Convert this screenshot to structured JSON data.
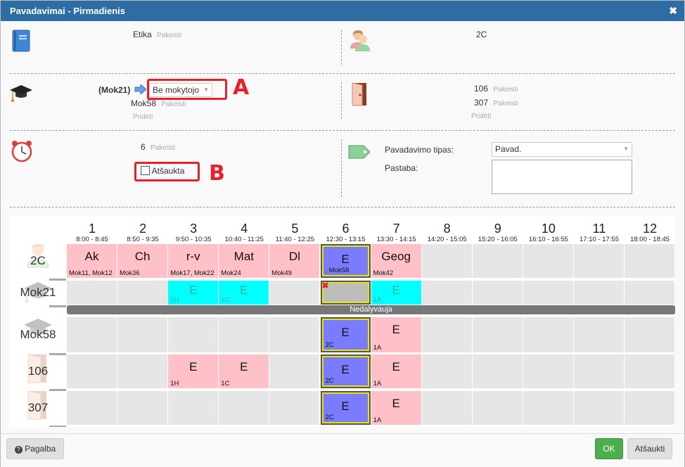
{
  "dialog": {
    "title": "Pavadavimai - Pirmadienis",
    "close_glyph": "✖"
  },
  "subject": {
    "name": "Etika",
    "change": "Pakeisti",
    "icon": "book-icon"
  },
  "klass": {
    "name": "2C",
    "icon": "users-icon"
  },
  "teacher": {
    "original": "(Mok21)",
    "select_value": "Be mokytojo",
    "second": "Mok58",
    "change": "Pakeisti",
    "add": "Pridėti",
    "icon": "graduation-cap-icon"
  },
  "rooms": {
    "items": [
      {
        "name": "106",
        "change": "Pakeisti"
      },
      {
        "name": "307",
        "change": "Pakeisti"
      }
    ],
    "add": "Pridėti",
    "icon": "door-icon"
  },
  "period": {
    "value": "6",
    "change": "Pakeisti",
    "cancelled_label": "Atšaukta",
    "cancelled_checked": false,
    "icon": "alarm-clock-icon"
  },
  "type": {
    "label": "Pavadavimo tipas:",
    "value": "Pavad.",
    "note_label": "Pastaba:",
    "note_value": "",
    "icon": "tag-icon"
  },
  "annotations": {
    "a": "A",
    "b": "B"
  },
  "timetable": {
    "periods": [
      {
        "n": "1",
        "t": "8:00 - 8:45"
      },
      {
        "n": "2",
        "t": "8:50 - 9:35"
      },
      {
        "n": "3",
        "t": "9:50 - 10:35"
      },
      {
        "n": "4",
        "t": "10:40 - 11:25"
      },
      {
        "n": "5",
        "t": "11:40 - 12:25"
      },
      {
        "n": "6",
        "t": "12:30 - 13:15"
      },
      {
        "n": "7",
        "t": "13:30 - 14:15"
      },
      {
        "n": "8",
        "t": "14:20 - 15:05"
      },
      {
        "n": "9",
        "t": "15:20 - 16:05"
      },
      {
        "n": "10",
        "t": "16:10 - 16:55"
      },
      {
        "n": "11",
        "t": "17:10 - 17:55"
      },
      {
        "n": "12",
        "t": "18:00 - 18:45"
      }
    ],
    "rows": [
      {
        "label": "2C",
        "icon": "users-icon",
        "lessons": [
          {
            "col": 0,
            "subj": "Ak",
            "sub": "Mok11, Mok12",
            "style": "pink"
          },
          {
            "col": 1,
            "subj": "Ch",
            "sub": "Mok36",
            "style": "pink"
          },
          {
            "col": 2,
            "subj": "r-v",
            "sub": "Mok17, Mok22",
            "style": "pink"
          },
          {
            "col": 3,
            "subj": "Mat",
            "sub": "Mok24",
            "style": "pink"
          },
          {
            "col": 4,
            "subj": "Dl",
            "sub": "Mok49",
            "style": "pink"
          },
          {
            "col": 5,
            "subj": "E",
            "sub": ", Mok58",
            "style": "blue"
          },
          {
            "col": 6,
            "subj": "Geog",
            "sub": "Mok42",
            "style": "pink"
          }
        ]
      },
      {
        "label": "Mok21",
        "icon": "graduation-cap-icon",
        "lessons": [
          {
            "col": 2,
            "subj": "E",
            "sub": "1H",
            "style": "cyan"
          },
          {
            "col": 3,
            "subj": "E",
            "sub": "1C",
            "style": "cyan"
          },
          {
            "col": 5,
            "subj": "",
            "sub": "",
            "style": "graysel"
          },
          {
            "col": 6,
            "subj": "E",
            "sub": "1A",
            "style": "cyan"
          }
        ],
        "bar": "Nedalyvauja"
      },
      {
        "label": "Mok58",
        "icon": "graduation-cap-icon",
        "lessons": [
          {
            "col": 5,
            "subj": "E",
            "sub": "2C",
            "style": "blue"
          },
          {
            "col": 6,
            "subj": "E",
            "sub": "1A",
            "style": "pink"
          }
        ]
      },
      {
        "label": "106",
        "icon": "door-icon",
        "lessons": [
          {
            "col": 2,
            "subj": "E",
            "sub": "1H",
            "style": "pink"
          },
          {
            "col": 3,
            "subj": "E",
            "sub": "1C",
            "style": "pink"
          },
          {
            "col": 5,
            "subj": "E",
            "sub": "2C",
            "style": "blue"
          },
          {
            "col": 6,
            "subj": "E",
            "sub": "1A",
            "style": "pink"
          }
        ]
      },
      {
        "label": "307",
        "icon": "door-icon",
        "lessons": [
          {
            "col": 5,
            "subj": "E",
            "sub": "2C",
            "style": "blue"
          },
          {
            "col": 6,
            "subj": "E",
            "sub": "1A",
            "style": "pink"
          }
        ]
      }
    ]
  },
  "footer": {
    "help": "Pagalba",
    "ok": "OK",
    "cancel": "Atšaukti"
  }
}
